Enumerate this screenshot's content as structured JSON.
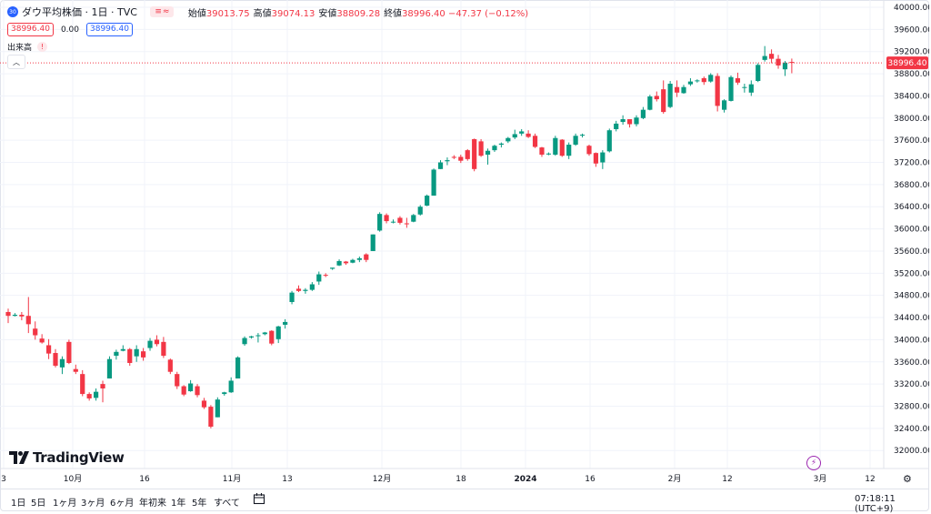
{
  "symbol": {
    "logo_text": "30",
    "title": "ダウ平均株価 · 1日 · TVC",
    "ohlc": [
      {
        "label": "始値",
        "value": "39013.75"
      },
      {
        "label": "高値",
        "value": "39074.13"
      },
      {
        "label": "安値",
        "value": "38809.28"
      },
      {
        "label": "終値",
        "value": "38996.40 −47.37 (−0.12%)"
      }
    ],
    "sell_price": "38996.40",
    "spread": "0.00",
    "buy_price": "38996.40",
    "volume_label": "出来高",
    "warning": "!"
  },
  "brand": "TradingView",
  "price_axis": {
    "ticks": [
      "40000.00",
      "39600.00",
      "39200.00",
      "38800.00",
      "38400.00",
      "38000.00",
      "37600.00",
      "37200.00",
      "36800.00",
      "36400.00",
      "36000.00",
      "35600.00",
      "35200.00",
      "34800.00",
      "34400.00",
      "34000.00",
      "33600.00",
      "33200.00",
      "32800.00",
      "32400.00",
      "32000.00"
    ],
    "last_price_label": "38996.40"
  },
  "time_axis": {
    "labels": [
      {
        "text": "3",
        "bold": false
      },
      {
        "text": "10月",
        "bold": false
      },
      {
        "text": "16",
        "bold": false
      },
      {
        "text": "11月",
        "bold": false
      },
      {
        "text": "13",
        "bold": false
      },
      {
        "text": "12月",
        "bold": false
      },
      {
        "text": "18",
        "bold": false
      },
      {
        "text": "2024",
        "bold": true
      },
      {
        "text": "16",
        "bold": false
      },
      {
        "text": "2月",
        "bold": false
      },
      {
        "text": "12",
        "bold": false
      },
      {
        "text": "3月",
        "bold": false
      },
      {
        "text": "12",
        "bold": false
      }
    ]
  },
  "bottom_bar": {
    "ranges": [
      "1日",
      "5日",
      "1ヶ月",
      "3ヶ月",
      "6ヶ月",
      "年初来",
      "1年",
      "5年",
      "すべて"
    ],
    "time": "07:18:11 (UTC+9)"
  },
  "colors": {
    "up": "#089981",
    "down": "#f23645",
    "grid": "#f0f3fa",
    "axis_text": "#131722"
  },
  "chart_data": {
    "type": "candlestick",
    "title": "ダウ平均株価 · 1日 · TVC",
    "ylim": [
      31800,
      40200
    ],
    "last": 38996.4,
    "candles": [
      [
        34500,
        34560,
        34300,
        34430
      ],
      [
        34430,
        34480,
        34420,
        34450
      ],
      [
        34450,
        34500,
        34350,
        34420
      ],
      [
        34430,
        34770,
        34120,
        34280
      ],
      [
        34200,
        34330,
        34000,
        34080
      ],
      [
        34020,
        34100,
        33930,
        33950
      ],
      [
        33900,
        34010,
        33650,
        33750
      ],
      [
        33760,
        33830,
        33500,
        33530
      ],
      [
        33500,
        33700,
        33380,
        33650
      ],
      [
        33960,
        34000,
        33560,
        33580
      ],
      [
        33470,
        33550,
        33380,
        33420
      ],
      [
        33380,
        33450,
        32980,
        33020
      ],
      [
        33020,
        33050,
        32900,
        32940
      ],
      [
        32950,
        33120,
        32900,
        33060
      ],
      [
        33200,
        33260,
        32870,
        33120
      ],
      [
        33300,
        33700,
        33300,
        33650
      ],
      [
        33710,
        33820,
        33640,
        33780
      ],
      [
        33800,
        33900,
        33790,
        33830
      ],
      [
        33830,
        33850,
        33530,
        33580
      ],
      [
        33700,
        33900,
        33600,
        33830
      ],
      [
        33790,
        33850,
        33620,
        33680
      ],
      [
        33850,
        34030,
        33800,
        33980
      ],
      [
        34000,
        34080,
        33880,
        33920
      ],
      [
        33960,
        34050,
        33670,
        33710
      ],
      [
        33640,
        33660,
        33380,
        33420
      ],
      [
        33380,
        33420,
        33110,
        33160
      ],
      [
        33160,
        33180,
        32980,
        33010
      ],
      [
        33070,
        33270,
        33060,
        33210
      ],
      [
        33160,
        33200,
        32960,
        33000
      ],
      [
        32900,
        32950,
        32750,
        32780
      ],
      [
        32790,
        32820,
        32400,
        32430
      ],
      [
        32600,
        32960,
        32600,
        32920
      ],
      [
        33020,
        33060,
        32990,
        33050
      ],
      [
        33050,
        33320,
        33040,
        33260
      ],
      [
        33300,
        33700,
        33300,
        33680
      ],
      [
        33920,
        34060,
        33890,
        34030
      ],
      [
        34040,
        34070,
        34020,
        34060
      ],
      [
        34080,
        34120,
        33950,
        34080
      ],
      [
        34100,
        34140,
        34080,
        34130
      ],
      [
        34160,
        34170,
        33900,
        33930
      ],
      [
        34010,
        34250,
        33940,
        34240
      ],
      [
        34270,
        34370,
        34200,
        34320
      ],
      [
        34680,
        34880,
        34640,
        34850
      ],
      [
        34920,
        34980,
        34860,
        34880
      ],
      [
        34880,
        34930,
        34830,
        34900
      ],
      [
        34900,
        35040,
        34880,
        35000
      ],
      [
        35050,
        35230,
        34990,
        35180
      ],
      [
        35170,
        35200,
        35130,
        35160
      ],
      [
        35280,
        35300,
        35260,
        35300
      ],
      [
        35340,
        35450,
        35330,
        35420
      ],
      [
        35410,
        35420,
        35350,
        35380
      ],
      [
        35390,
        35460,
        35380,
        35440
      ],
      [
        35440,
        35500,
        35400,
        35470
      ],
      [
        35540,
        35560,
        35400,
        35440
      ],
      [
        35600,
        35900,
        35600,
        35900
      ],
      [
        35970,
        36300,
        35950,
        36270
      ],
      [
        36250,
        36280,
        36100,
        36140
      ],
      [
        36130,
        36170,
        36100,
        36130
      ],
      [
        36200,
        36230,
        36080,
        36110
      ],
      [
        36100,
        36200,
        36020,
        36090
      ],
      [
        36130,
        36270,
        36120,
        36250
      ],
      [
        36260,
        36430,
        36240,
        36400
      ],
      [
        36420,
        36620,
        36410,
        36600
      ],
      [
        36600,
        37090,
        36600,
        37070
      ],
      [
        37080,
        37240,
        37080,
        37200
      ],
      [
        37220,
        37290,
        37150,
        37240
      ],
      [
        37300,
        37330,
        37260,
        37290
      ],
      [
        37300,
        37340,
        37190,
        37230
      ],
      [
        37420,
        37440,
        37230,
        37260
      ],
      [
        37620,
        37630,
        37040,
        37080
      ],
      [
        37580,
        37620,
        37300,
        37320
      ],
      [
        37340,
        37450,
        37160,
        37410
      ],
      [
        37420,
        37520,
        37390,
        37500
      ],
      [
        37520,
        37560,
        37470,
        37540
      ],
      [
        37580,
        37660,
        37550,
        37640
      ],
      [
        37650,
        37790,
        37620,
        37710
      ],
      [
        37720,
        37800,
        37680,
        37760
      ],
      [
        37720,
        37780,
        37640,
        37660
      ],
      [
        37680,
        37720,
        37460,
        37480
      ],
      [
        37470,
        37480,
        37300,
        37340
      ],
      [
        37360,
        37380,
        37330,
        37360
      ],
      [
        37340,
        37680,
        37320,
        37640
      ],
      [
        37610,
        37620,
        37300,
        37320
      ],
      [
        37320,
        37560,
        37260,
        37520
      ],
      [
        37520,
        37720,
        37500,
        37680
      ],
      [
        37690,
        37720,
        37650,
        37700
      ],
      [
        37500,
        37520,
        37320,
        37350
      ],
      [
        37370,
        37380,
        37120,
        37180
      ],
      [
        37200,
        37420,
        37080,
        37380
      ],
      [
        37400,
        37810,
        37380,
        37780
      ],
      [
        37800,
        37950,
        37760,
        37900
      ],
      [
        37930,
        38050,
        37880,
        37980
      ],
      [
        37980,
        37980,
        37830,
        37890
      ],
      [
        37890,
        38050,
        37850,
        38010
      ],
      [
        38000,
        38200,
        37980,
        38150
      ],
      [
        38150,
        38420,
        38140,
        38390
      ],
      [
        38400,
        38480,
        38300,
        38340
      ],
      [
        38520,
        38680,
        38080,
        38110
      ],
      [
        38200,
        38670,
        38180,
        38620
      ],
      [
        38560,
        38680,
        38380,
        38460
      ],
      [
        38450,
        38600,
        38440,
        38560
      ],
      [
        38610,
        38720,
        38580,
        38660
      ],
      [
        38680,
        38700,
        38640,
        38680
      ],
      [
        38720,
        38750,
        38600,
        38650
      ],
      [
        38660,
        38810,
        38640,
        38780
      ],
      [
        38760,
        38810,
        38120,
        38220
      ],
      [
        38150,
        38340,
        38100,
        38320
      ],
      [
        38310,
        38770,
        38300,
        38740
      ],
      [
        38720,
        38820,
        38600,
        38640
      ],
      [
        38550,
        38620,
        38460,
        38560
      ],
      [
        38460,
        38680,
        38400,
        38610
      ],
      [
        38670,
        38990,
        38650,
        38960
      ],
      [
        39050,
        39300,
        39020,
        39120
      ],
      [
        39160,
        39240,
        38990,
        39070
      ],
      [
        39070,
        39140,
        38890,
        38950
      ],
      [
        38880,
        39030,
        38760,
        39000
      ],
      [
        39013.75,
        39074.13,
        38809.28,
        38996.4
      ]
    ]
  }
}
